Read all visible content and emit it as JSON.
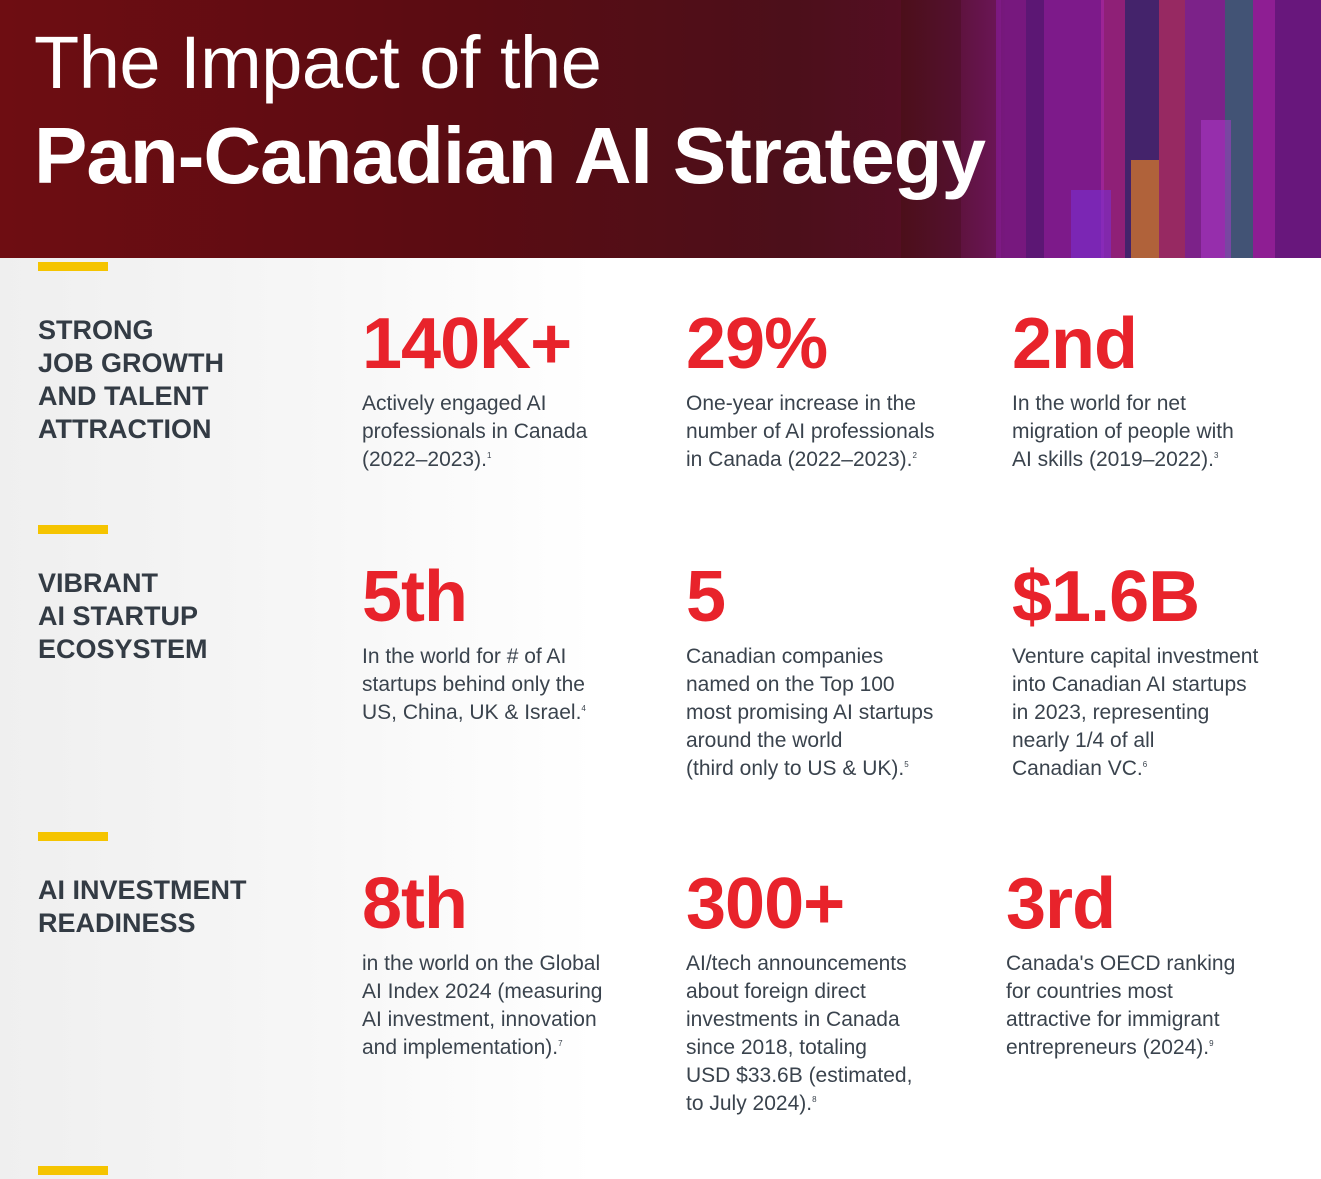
{
  "header": {
    "title_line1": "The Impact of the",
    "title_line2": "Pan-Canadian AI Strategy"
  },
  "colors": {
    "accent_red": "#e8232b",
    "accent_yellow": "#f5c400",
    "header_dark": "#5a0c12",
    "label_text": "#333b44"
  },
  "sections": [
    {
      "label": "STRONG\nJOB GROWTH\nAND TALENT\nATTRACTION",
      "stats": [
        {
          "value": "140K+",
          "desc": "Actively engaged AI\nprofessionals in Canada\n(2022–2023).",
          "note": "1"
        },
        {
          "value": "29%",
          "desc": "One-year increase in the\nnumber of AI professionals\nin Canada (2022–2023).",
          "note": "2"
        },
        {
          "value": "2nd",
          "desc": "In the world for net\nmigration of people with\nAI skills (2019–2022).",
          "note": "3"
        }
      ]
    },
    {
      "label": "VIBRANT\nAI STARTUP\nECOSYSTEM",
      "stats": [
        {
          "value": "5th",
          "desc": "In the world for # of AI\nstartups behind only the\nUS, China, UK & Israel.",
          "note": "4"
        },
        {
          "value": "5",
          "desc": "Canadian companies\nnamed on the Top 100\nmost promising AI startups\naround the world\n(third only to US & UK).",
          "note": "5"
        },
        {
          "value": "$1.6B",
          "desc": "Venture capital investment\ninto Canadian AI startups\nin 2023, representing\nnearly 1/4 of all\nCanadian VC.",
          "note": "6"
        }
      ]
    },
    {
      "label": "AI INVESTMENT\nREADINESS",
      "stats": [
        {
          "value": "8th",
          "desc": "in the world on the Global\nAI Index 2024 (measuring\nAI investment, innovation\nand implementation).",
          "note": "7"
        },
        {
          "value": "300+",
          "desc": "AI/tech announcements\nabout foreign direct\ninvestments in Canada\nsince 2018, totaling\nUSD $33.6B (estimated,\nto July 2024).",
          "note": "8"
        },
        {
          "value": "3rd",
          "desc": "Canada's OECD ranking\nfor countries most\nattractive for immigrant\nentrepreneurs (2024).",
          "note": "9"
        }
      ]
    }
  ]
}
